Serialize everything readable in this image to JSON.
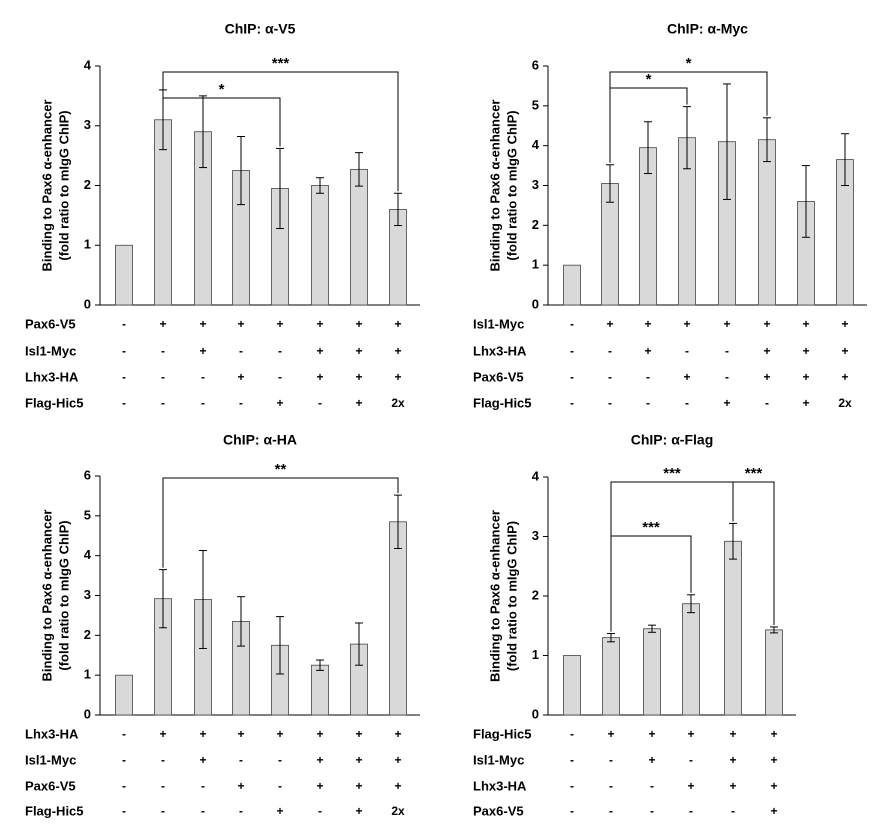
{
  "chart_data": [
    {
      "type": "bar",
      "title": "ChIP: α-V5",
      "y_label": [
        "Binding to Pax6 α-enhancer",
        "(fold ratio to mIgG ChIP)"
      ],
      "values": [
        1,
        3.1,
        2.9,
        2.25,
        1.95,
        2.0,
        2.27,
        1.6
      ],
      "errors": [
        0,
        0.5,
        0.6,
        0.57,
        0.67,
        0.13,
        0.28,
        0.27
      ],
      "color": "#d9d9d9",
      "ylim": [
        0,
        4
      ],
      "yticks": [
        0,
        1,
        2,
        3,
        4
      ],
      "brackets": [
        {
          "from": 1,
          "to": 4,
          "label": "*"
        },
        {
          "from": 1,
          "to": 7,
          "label": "***"
        }
      ],
      "rows": [
        {
          "name": "Pax6-V5",
          "cells": [
            "-",
            "+",
            "+",
            "+",
            "+",
            "+",
            "+",
            "+"
          ]
        },
        {
          "name": "Isl1-Myc",
          "cells": [
            "-",
            "-",
            "+",
            "-",
            "-",
            "+",
            "+",
            "+"
          ]
        },
        {
          "name": "Lhx3-HA",
          "cells": [
            "-",
            "-",
            "-",
            "+",
            "-",
            "+",
            "+",
            "+"
          ]
        },
        {
          "name": "Flag-Hic5",
          "cells": [
            "-",
            "-",
            "-",
            "-",
            "+",
            "-",
            "+",
            "2x"
          ]
        }
      ]
    },
    {
      "type": "bar",
      "title": "ChIP: α-Myc",
      "y_label": [
        "Binding to Pax6 α-enhancer",
        "(fold ratio to mIgG ChIP)"
      ],
      "values": [
        1,
        3.05,
        3.95,
        4.2,
        4.1,
        4.15,
        2.6,
        3.65
      ],
      "errors": [
        0,
        0.47,
        0.65,
        0.78,
        1.45,
        0.55,
        0.9,
        0.65
      ],
      "color": "#d9d9d9",
      "ylim": [
        0,
        6
      ],
      "yticks": [
        0,
        1,
        2,
        3,
        4,
        5,
        6
      ],
      "brackets": [
        {
          "from": 1,
          "to": 3,
          "label": "*"
        },
        {
          "from": 1,
          "to": 5,
          "label": "*"
        }
      ],
      "rows": [
        {
          "name": "Isl1-Myc",
          "cells": [
            "-",
            "+",
            "+",
            "+",
            "+",
            "+",
            "+",
            "+"
          ]
        },
        {
          "name": "Lhx3-HA",
          "cells": [
            "-",
            "-",
            "+",
            "-",
            "-",
            "+",
            "+",
            "+"
          ]
        },
        {
          "name": "Pax6-V5",
          "cells": [
            "-",
            "-",
            "-",
            "+",
            "-",
            "+",
            "+",
            "+"
          ]
        },
        {
          "name": "Flag-Hic5",
          "cells": [
            "-",
            "-",
            "-",
            "-",
            "+",
            "-",
            "+",
            "2x"
          ]
        }
      ]
    },
    {
      "type": "bar",
      "title": "ChIP: α-HA",
      "y_label": [
        "Binding to Pax6 α-enhancer",
        "(fold ratio to mIgG ChIP)"
      ],
      "values": [
        1,
        2.92,
        2.9,
        2.35,
        1.75,
        1.25,
        1.78,
        4.85
      ],
      "errors": [
        0,
        0.73,
        1.23,
        0.62,
        0.72,
        0.13,
        0.53,
        0.67
      ],
      "color": "#d9d9d9",
      "ylim": [
        0,
        6
      ],
      "yticks": [
        0,
        1,
        2,
        3,
        4,
        5,
        6
      ],
      "brackets": [
        {
          "from": 1,
          "to": 7,
          "label": "**"
        }
      ],
      "rows": [
        {
          "name": "Lhx3-HA",
          "cells": [
            "-",
            "+",
            "+",
            "+",
            "+",
            "+",
            "+",
            "+"
          ]
        },
        {
          "name": "Isl1-Myc",
          "cells": [
            "-",
            "-",
            "+",
            "-",
            "-",
            "+",
            "+",
            "+"
          ]
        },
        {
          "name": "Pax6-V5",
          "cells": [
            "-",
            "-",
            "-",
            "+",
            "-",
            "+",
            "+",
            "+"
          ]
        },
        {
          "name": "Flag-Hic5",
          "cells": [
            "-",
            "-",
            "-",
            "-",
            "+",
            "-",
            "+",
            "2x"
          ]
        }
      ]
    },
    {
      "type": "bar",
      "title": "ChIP: α-Flag",
      "y_label": [
        "Binding to Pax6 α-enhancer",
        "(fold ratio to mIgG ChIP)"
      ],
      "values": [
        1,
        1.3,
        1.45,
        1.87,
        2.92,
        1.43
      ],
      "errors": [
        0,
        0.07,
        0.06,
        0.15,
        0.3,
        0.05
      ],
      "color": "#d9d9d9",
      "ylim": [
        0,
        4
      ],
      "yticks": [
        0,
        1,
        2,
        3,
        4
      ],
      "brackets": [
        {
          "from": 1,
          "to": 4,
          "label": "***"
        },
        {
          "from": 1,
          "to": 3,
          "label": "***"
        },
        {
          "from": 4,
          "to": 5,
          "label": "***"
        }
      ],
      "rows": [
        {
          "name": "Flag-Hic5",
          "cells": [
            "-",
            "+",
            "+",
            "+",
            "+",
            "+"
          ]
        },
        {
          "name": "Isl1-Myc",
          "cells": [
            "-",
            "-",
            "+",
            "-",
            "+",
            "+"
          ]
        },
        {
          "name": "Lhx3-HA",
          "cells": [
            "-",
            "-",
            "-",
            "+",
            "+",
            "+"
          ]
        },
        {
          "name": "Pax6-V5",
          "cells": [
            "-",
            "-",
            "-",
            "-",
            "-",
            "+"
          ]
        }
      ]
    }
  ]
}
